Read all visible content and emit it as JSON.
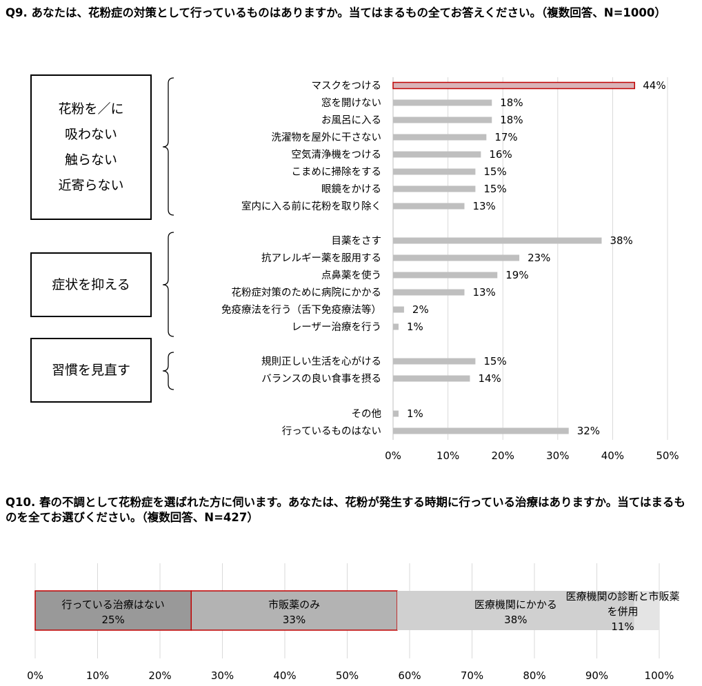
{
  "q9": {
    "title": "Q9.  あなたは、花粉症の対策として行っているものはありますか。当てはまるもの全てお答えください。（複数回答、N=1000）",
    "groups": [
      {
        "label": "花粉を／に\n吸わない\n触らない\n近寄らない"
      },
      {
        "label": "症状を抑える"
      },
      {
        "label": "習慣を見直す"
      }
    ]
  },
  "q10": {
    "title": "Q10.  春の不調として花粉症を選ばれた方に伺います。あなたは、花粉が発生する時期に行っている治療はありますか。当てはまるものを全てお選びください。（複数回答、N=427）"
  },
  "chart_data": [
    {
      "type": "bar",
      "orientation": "horizontal",
      "categories": [
        "マスクをつける",
        "窓を開けない",
        "お風呂に入る",
        "洗濯物を屋外に干さない",
        "空気清浄機をつける",
        "こまめに掃除をする",
        "眼鏡をかける",
        "室内に入る前に花粉を取り除く",
        "目薬をさす",
        "抗アレルギー薬を服用する",
        "点鼻薬を使う",
        "花粉症対策のために病院にかかる",
        "免疫療法を行う（舌下免疫療法等）",
        "レーザー治療を行う",
        "規則正しい生活を心がける",
        "バランスの良い食事を摂る",
        "その他",
        "行っているものはない"
      ],
      "values": [
        44,
        18,
        18,
        17,
        16,
        15,
        15,
        13,
        38,
        23,
        19,
        13,
        2,
        1,
        15,
        14,
        1,
        32
      ],
      "value_labels": [
        "44%",
        "18%",
        "18%",
        "17%",
        "16%",
        "15%",
        "15%",
        "13%",
        "38%",
        "23%",
        "19%",
        "13%",
        "2%",
        "1%",
        "15%",
        "14%",
        "1%",
        "32%"
      ],
      "xlim": [
        0,
        50
      ],
      "xticks": [
        "0%",
        "10%",
        "20%",
        "30%",
        "40%",
        "50%"
      ],
      "grid": true,
      "colors": {
        "bar": "#bfbfbf",
        "highlight_fill": "#d9b3b8",
        "highlight_border": "#c00000"
      }
    },
    {
      "type": "bar",
      "orientation": "horizontal-stacked",
      "segments": [
        {
          "label": "行っている治療はない",
          "value": 25,
          "value_label": "25%",
          "color": "#999999",
          "highlight": true
        },
        {
          "label": "市販薬のみ",
          "value": 33,
          "value_label": "33%",
          "color": "#b3b3b3",
          "highlight": true
        },
        {
          "label": "医療機関にかかる",
          "value": 38,
          "value_label": "38%",
          "color": "#d0d0d0",
          "highlight": false
        },
        {
          "label": "医療機関の診断と市販薬を併用",
          "value": 11,
          "value_label": "11%",
          "color": "#e4e4e4",
          "highlight": false
        }
      ],
      "xlim": [
        0,
        100
      ],
      "xticks": [
        "0%",
        "10%",
        "20%",
        "30%",
        "40%",
        "50%",
        "60%",
        "70%",
        "80%",
        "90%",
        "100%"
      ],
      "grid": true,
      "colors": {
        "highlight_border": "#c00000"
      }
    }
  ]
}
